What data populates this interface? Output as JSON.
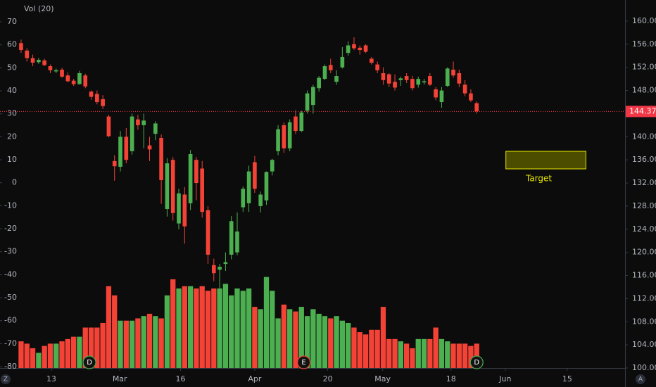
{
  "chart_data": {
    "type": "candlestick",
    "title": "Vol (20)",
    "open": [
      156.2,
      154.9,
      153.6,
      152.9,
      153.2,
      152.2,
      151.3,
      151.6,
      150.6,
      149.7,
      149.1,
      150.6,
      147.8,
      147.4,
      146.5,
      143.5,
      135.8,
      134.8,
      140.0,
      137.5,
      143.0,
      142.0,
      138.5,
      140.5,
      139.8,
      127.5,
      136.0,
      125.0,
      130.0,
      128.5,
      136.0,
      134.5,
      127.3,
      117.8,
      117.0,
      118.0,
      119.6,
      120.0,
      127.8,
      128.5,
      135.6,
      128.0,
      129.0,
      134.0,
      137.5,
      142.0,
      138.0,
      143.5,
      141.0,
      144.5,
      145.5,
      148.4,
      150.0,
      152.4,
      149.5,
      152.0,
      154.5,
      156.0,
      155.4,
      155.8,
      153.5,
      152.5,
      151.0,
      150.8,
      149.5,
      149.8,
      150.5,
      150.0,
      149.0,
      149.4,
      150.5,
      148.2,
      146.0,
      148.8,
      151.6,
      151.0,
      149.0,
      147.5,
      145.8
    ],
    "high": [
      156.8,
      155.3,
      154.2,
      153.6,
      153.5,
      152.5,
      151.8,
      151.9,
      151.1,
      150.0,
      151.4,
      150.9,
      148.0,
      148.0,
      147.2,
      143.8,
      136.8,
      141.0,
      141.5,
      144.0,
      143.8,
      144.0,
      140.0,
      142.7,
      140.4,
      136.3,
      136.5,
      131.0,
      131.3,
      137.7,
      136.5,
      135.8,
      128.0,
      118.9,
      118.0,
      120.0,
      126.3,
      126.9,
      131.4,
      135.0,
      136.7,
      130.5,
      134.0,
      136.2,
      142.0,
      142.5,
      143.0,
      144.6,
      144.5,
      148.0,
      149.0,
      150.5,
      152.5,
      153.5,
      151.5,
      155.5,
      156.5,
      157.2,
      155.8,
      156.0,
      153.8,
      153.0,
      152.0,
      151.0,
      150.8,
      150.4,
      151.0,
      150.5,
      150.4,
      150.0,
      151.0,
      148.6,
      148.6,
      152.0,
      153.0,
      151.6,
      149.8,
      148.2,
      146.1
    ],
    "low": [
      154.5,
      153.0,
      152.2,
      152.6,
      152.2,
      151.0,
      151.0,
      150.2,
      149.4,
      148.8,
      149.0,
      148.4,
      146.4,
      145.6,
      144.8,
      139.9,
      132.4,
      134.0,
      135.4,
      136.9,
      141.2,
      138.0,
      135.8,
      139.4,
      128.4,
      126.2,
      125.5,
      124.0,
      121.5,
      127.3,
      129.0,
      126.0,
      118.0,
      115.0,
      113.5,
      116.8,
      118.8,
      119.5,
      127.0,
      127.0,
      130.3,
      126.9,
      128.2,
      133.3,
      136.8,
      137.2,
      137.5,
      140.5,
      140.8,
      144.0,
      144.0,
      147.8,
      149.8,
      151.0,
      149.0,
      151.8,
      154.0,
      155.0,
      154.2,
      154.5,
      152.5,
      151.0,
      149.0,
      148.6,
      148.0,
      148.8,
      149.3,
      148.0,
      148.5,
      149.0,
      148.8,
      146.3,
      145.0,
      148.6,
      150.2,
      148.6,
      147.0,
      146.0,
      144.0
    ],
    "close": [
      155.0,
      153.6,
      152.8,
      153.3,
      152.4,
      151.5,
      151.5,
      150.4,
      149.6,
      149.1,
      151.0,
      148.7,
      146.9,
      146.0,
      145.3,
      140.1,
      134.9,
      140.0,
      136.0,
      143.5,
      142.0,
      142.8,
      137.8,
      142.3,
      132.5,
      135.4,
      126.8,
      130.2,
      124.5,
      137.0,
      132.0,
      127.0,
      119.6,
      116.4,
      117.5,
      118.3,
      125.4,
      123.6,
      131.0,
      134.0,
      131.0,
      130.0,
      133.9,
      136.0,
      141.3,
      138.0,
      142.5,
      141.0,
      144.2,
      147.5,
      148.6,
      150.2,
      152.2,
      151.5,
      150.5,
      153.8,
      155.8,
      155.3,
      155.0,
      154.7,
      152.8,
      151.5,
      149.8,
      149.2,
      148.5,
      150.1,
      149.8,
      148.4,
      150.0,
      149.6,
      149.0,
      146.8,
      148.0,
      151.8,
      150.6,
      149.2,
      147.5,
      146.3,
      144.4
    ],
    "volume": [
      -69,
      -70,
      -72,
      -74,
      -71,
      -70,
      -70,
      -69,
      -68,
      -67,
      -67,
      -63,
      -63,
      -63,
      -61,
      -45,
      -49,
      -60,
      -60,
      -60,
      -59,
      -58,
      -57,
      -58,
      -59,
      -49,
      -42,
      -46,
      -45,
      -45,
      -46,
      -45,
      -47,
      -46,
      -46,
      -44,
      -49,
      -46,
      -47,
      -46,
      -54,
      -55,
      -41,
      -47,
      -59,
      -53,
      -55,
      -56,
      -54,
      -58,
      -55,
      -57,
      -58,
      -59,
      -58,
      -60,
      -61,
      -63,
      -65,
      -66,
      -64,
      -64,
      -54,
      -68,
      -68,
      -69,
      -70,
      -72,
      -68,
      -68,
      -68,
      -63,
      -68,
      -69,
      -70,
      -70,
      -70,
      -71,
      -70
    ],
    "colors": {
      "up": "#4caf50",
      "down": "#f44336"
    },
    "xlim": [
      -3.61,
      103.4
    ],
    "xticks": [
      {
        "value": 5.18,
        "label": "13"
      },
      {
        "value": 16.9,
        "label": "Mar"
      },
      {
        "value": 27.3,
        "label": "16"
      },
      {
        "value": 40,
        "label": "Apr"
      },
      {
        "value": 52.5,
        "label": "20"
      },
      {
        "value": 61.9,
        "label": "May"
      },
      {
        "value": 73.6,
        "label": "18"
      },
      {
        "value": 82.9,
        "label": "Jun"
      },
      {
        "value": 93.5,
        "label": "15"
      }
    ],
    "ylim": [
      100,
      163.65
    ],
    "yticks": [
      {
        "value": 100,
        "label": "100.00"
      },
      {
        "value": 104,
        "label": "104.00"
      },
      {
        "value": 108,
        "label": "108.00"
      },
      {
        "value": 112,
        "label": "112.00"
      },
      {
        "value": 116,
        "label": "116.00"
      },
      {
        "value": 120,
        "label": "120.00"
      },
      {
        "value": 124,
        "label": "124.00"
      },
      {
        "value": 128,
        "label": "128.00"
      },
      {
        "value": 132,
        "label": "132.00"
      },
      {
        "value": 136,
        "label": "136.00"
      },
      {
        "value": 140,
        "label": "140.00"
      },
      {
        "value": 144,
        "label": "144.00"
      },
      {
        "value": 148,
        "label": "148.00"
      },
      {
        "value": 152,
        "label": "152.00"
      },
      {
        "value": 156,
        "label": "156.00"
      },
      {
        "value": 160,
        "label": "160.00"
      }
    ],
    "y2lim": [
      -80.6,
      79.5
    ],
    "y2ticks": [
      70,
      60,
      50,
      40,
      30,
      20,
      10,
      0,
      -10,
      -20,
      -30,
      -40,
      -50,
      -60,
      -70,
      -80
    ],
    "last_price": 144.37,
    "target": {
      "label": "Target",
      "xlim": [
        83,
        96.7
      ],
      "ylim": [
        134.44,
        137.48
      ]
    },
    "events": [
      {
        "x": 11.7,
        "label": "D",
        "color": "#4caf50"
      },
      {
        "x": 48.4,
        "label": "E",
        "color": "#f44336"
      },
      {
        "x": 78,
        "label": "D",
        "color": "#4caf50"
      }
    ],
    "corner_labels": [
      "Z",
      "A"
    ]
  }
}
